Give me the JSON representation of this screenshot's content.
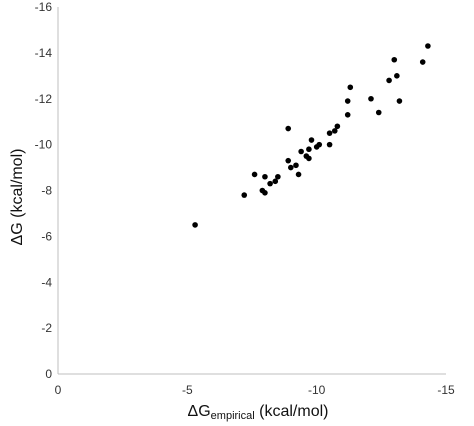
{
  "chart_data": {
    "type": "scatter",
    "title": "",
    "xlabel": {
      "main": "ΔG",
      "subscript": "empirical",
      "unit": " (kcal/mol)"
    },
    "ylabel": "ΔG (kcal/mol)",
    "xlim": [
      0,
      -15
    ],
    "ylim": [
      0,
      -16
    ],
    "x_reversed": true,
    "y_reversed": true,
    "xticks": [
      0,
      -5,
      -10,
      -15
    ],
    "xtick_labels": [
      "0",
      "-5",
      "-10",
      "-15"
    ],
    "yticks": [
      0,
      -2,
      -4,
      -6,
      -8,
      -10,
      -12,
      -14,
      -16
    ],
    "ytick_labels": [
      "0",
      "-2",
      "-4",
      "-6",
      "-8",
      "-10",
      "-12",
      "-14",
      "-16"
    ],
    "grid": false,
    "legend": "none",
    "marker_color": "#000000",
    "axis_color": "#bfbfbf",
    "points": [
      {
        "x": -5.3,
        "y": -6.5
      },
      {
        "x": -7.2,
        "y": -7.8
      },
      {
        "x": -7.6,
        "y": -8.7
      },
      {
        "x": -7.9,
        "y": -8.0
      },
      {
        "x": -8.0,
        "y": -7.9
      },
      {
        "x": -8.0,
        "y": -8.6
      },
      {
        "x": -8.2,
        "y": -8.3
      },
      {
        "x": -8.4,
        "y": -8.4
      },
      {
        "x": -8.5,
        "y": -8.6
      },
      {
        "x": -8.9,
        "y": -9.3
      },
      {
        "x": -9.0,
        "y": -9.0
      },
      {
        "x": -9.2,
        "y": -9.1
      },
      {
        "x": -9.3,
        "y": -8.7
      },
      {
        "x": -8.9,
        "y": -10.7
      },
      {
        "x": -9.4,
        "y": -9.7
      },
      {
        "x": -9.6,
        "y": -9.5
      },
      {
        "x": -9.7,
        "y": -9.8
      },
      {
        "x": -9.7,
        "y": -9.4
      },
      {
        "x": -9.8,
        "y": -10.2
      },
      {
        "x": -10.0,
        "y": -9.9
      },
      {
        "x": -10.1,
        "y": -10.0
      },
      {
        "x": -10.5,
        "y": -10.0
      },
      {
        "x": -10.5,
        "y": -10.5
      },
      {
        "x": -10.7,
        "y": -10.6
      },
      {
        "x": -10.8,
        "y": -10.8
      },
      {
        "x": -11.2,
        "y": -11.3
      },
      {
        "x": -11.2,
        "y": -11.9
      },
      {
        "x": -11.3,
        "y": -12.5
      },
      {
        "x": -12.1,
        "y": -12.0
      },
      {
        "x": -12.4,
        "y": -11.4
      },
      {
        "x": -12.8,
        "y": -12.8
      },
      {
        "x": -13.0,
        "y": -13.7
      },
      {
        "x": -13.1,
        "y": -13.0
      },
      {
        "x": -13.2,
        "y": -11.9
      },
      {
        "x": -14.1,
        "y": -13.6
      },
      {
        "x": -14.3,
        "y": -14.3
      }
    ]
  }
}
